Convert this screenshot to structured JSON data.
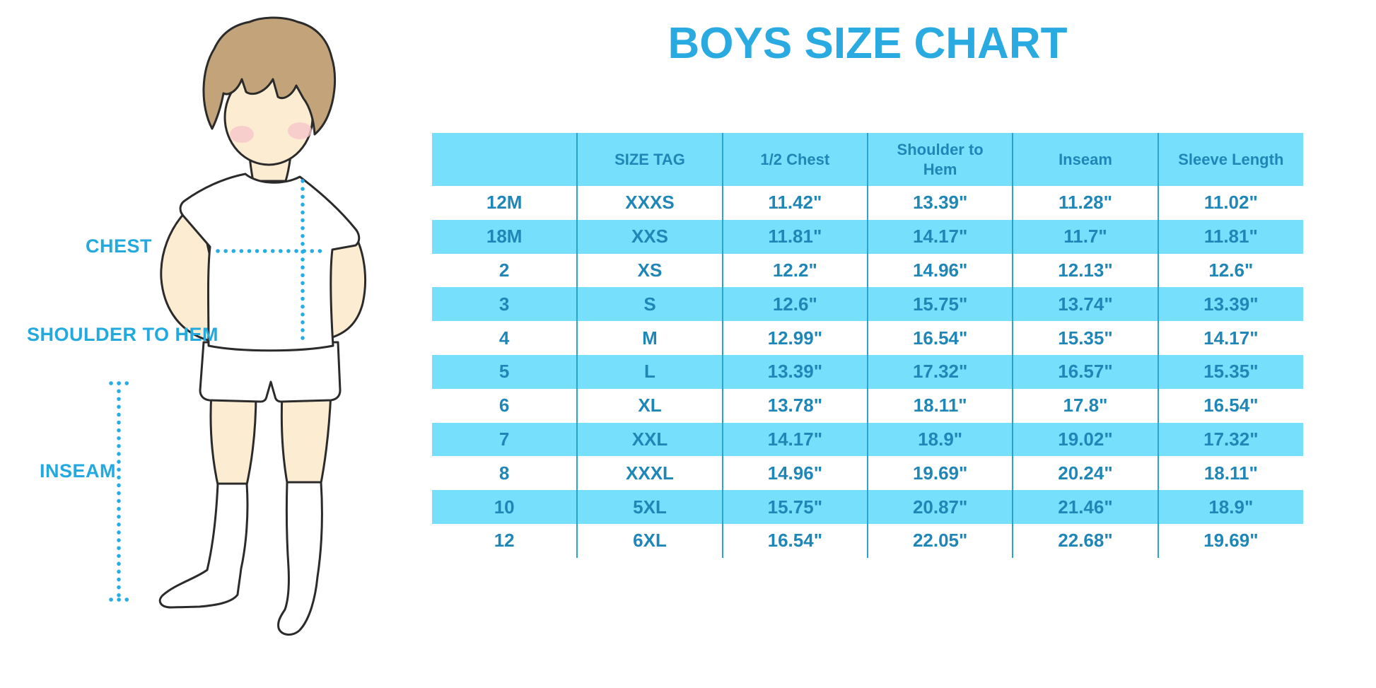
{
  "colors": {
    "title_blue": "#29ABE2",
    "band_cyan": "#76DFFB",
    "table_text": "#1F86B8",
    "column_line": "#2BA3D2",
    "label_blue": "#21A9E0",
    "dot_line": "#25ADE4",
    "hair_brown": "#C3A379",
    "skin": "#FCEDD2",
    "cheek_pink": "#F6C5CC",
    "outline": "#2B2B2B"
  },
  "figure": {
    "labels": {
      "chest": "CHEST",
      "shoulder_to_hem": "SHOULDER TO HEM",
      "inseam": "INSEAM"
    }
  },
  "chart_data": {
    "type": "table",
    "title": "BOYS SIZE CHART",
    "columns": [
      "",
      "SIZE TAG",
      "1/2 Chest",
      "Shoulder to Hem",
      "Inseam",
      "Sleeve Length"
    ],
    "rows": [
      [
        "12M",
        "XXXS",
        "11.42\"",
        "13.39\"",
        "11.28\"",
        "11.02\""
      ],
      [
        "18M",
        "XXS",
        "11.81\"",
        "14.17\"",
        "11.7\"",
        "11.81\""
      ],
      [
        "2",
        "XS",
        "12.2\"",
        "14.96\"",
        "12.13\"",
        "12.6\""
      ],
      [
        "3",
        "S",
        "12.6\"",
        "15.75\"",
        "13.74\"",
        "13.39\""
      ],
      [
        "4",
        "M",
        "12.99\"",
        "16.54\"",
        "15.35\"",
        "14.17\""
      ],
      [
        "5",
        "L",
        "13.39\"",
        "17.32\"",
        "16.57\"",
        "15.35\""
      ],
      [
        "6",
        "XL",
        "13.78\"",
        "18.11\"",
        "17.8\"",
        "16.54\""
      ],
      [
        "7",
        "XXL",
        "14.17\"",
        "18.9\"",
        "19.02\"",
        "17.32\""
      ],
      [
        "8",
        "XXXL",
        "14.96\"",
        "19.69\"",
        "20.24\"",
        "18.11\""
      ],
      [
        "10",
        "5XL",
        "15.75\"",
        "20.87\"",
        "21.46\"",
        "18.9\""
      ],
      [
        "12",
        "6XL",
        "16.54\"",
        "22.05\"",
        "22.68\"",
        "19.69\""
      ]
    ]
  }
}
